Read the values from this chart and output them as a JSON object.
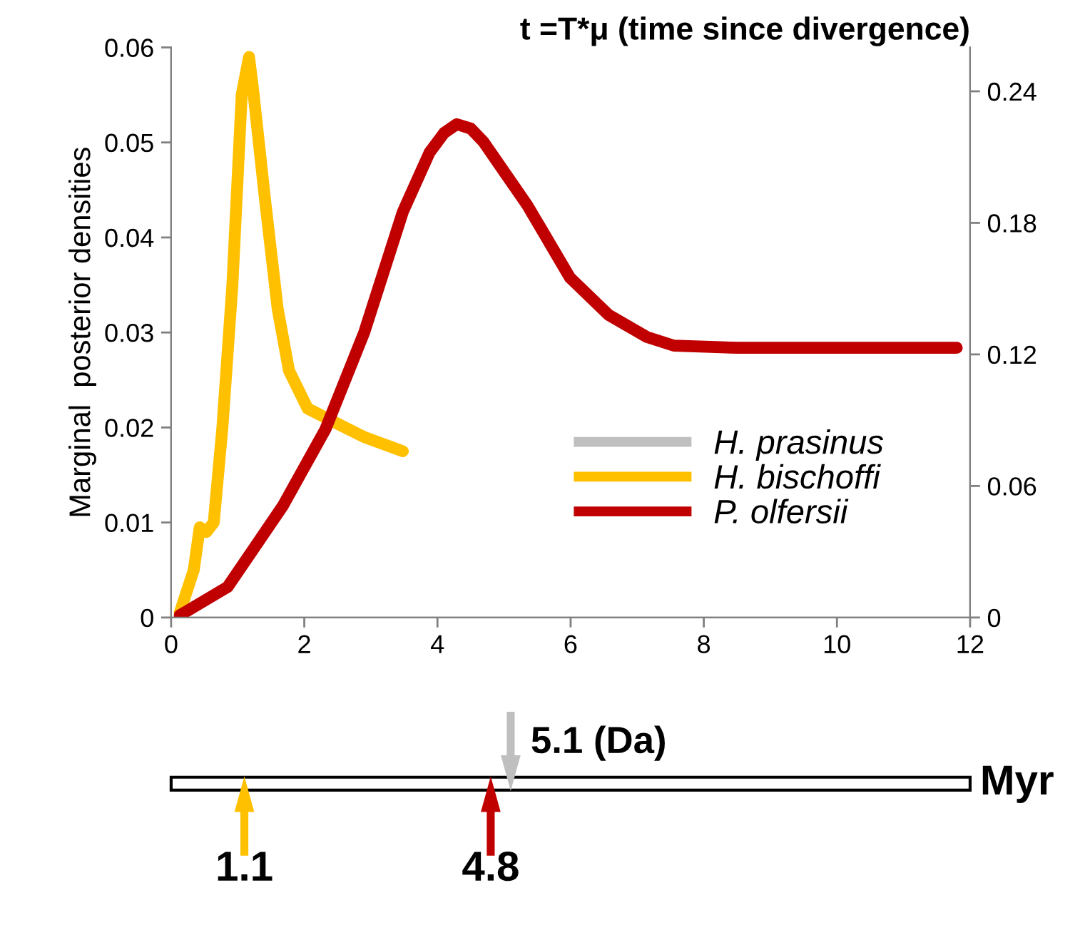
{
  "chart_data": [
    {
      "type": "line",
      "title": "t =T*μ (time since divergence)",
      "ylabel": "Marginal  posterior densities",
      "xlim": [
        0,
        12
      ],
      "xticks": [
        0,
        2,
        4,
        6,
        8,
        10,
        12
      ],
      "ylim": [
        0,
        0.06
      ],
      "yticks": [
        0,
        0.01,
        0.02,
        0.03,
        0.04,
        0.05,
        0.06
      ],
      "y2lim": [
        0,
        0.26
      ],
      "y2ticks": [
        0,
        0.06,
        0.12,
        0.18,
        0.24
      ],
      "grid": false,
      "legend": "lower right",
      "marker": "none",
      "line_style": "solid",
      "series": [
        {
          "name": "H. prasinus",
          "color": "#bfbfbf"
        },
        {
          "name": "H. bischoffi",
          "color": "#ffc000",
          "x": [
            0.13,
            0.34,
            0.43,
            0.53,
            0.64,
            0.77,
            0.92,
            1.06,
            1.17,
            1.24,
            1.41,
            1.6,
            1.77,
            2.05,
            2.47,
            2.9,
            3.48
          ],
          "values": [
            0.0005,
            0.005,
            0.0095,
            0.009,
            0.01,
            0.02,
            0.035,
            0.055,
            0.059,
            0.055,
            0.044,
            0.0325,
            0.026,
            0.022,
            0.0205,
            0.019,
            0.0175
          ]
        },
        {
          "name": "P. olfersii",
          "color": "#c00000",
          "axis": "y2",
          "x": [
            0.13,
            0.85,
            1.68,
            2.32,
            2.9,
            3.48,
            3.88,
            4.1,
            4.29,
            4.5,
            4.69,
            5.35,
            5.99,
            6.57,
            7.14,
            7.55,
            8.5,
            9.5,
            10.5,
            11.8
          ],
          "values": [
            0.001,
            0.014,
            0.051,
            0.086,
            0.13,
            0.185,
            0.212,
            0.221,
            0.225,
            0.223,
            0.217,
            0.188,
            0.155,
            0.138,
            0.128,
            0.124,
            0.123,
            0.123,
            0.123,
            0.123
          ]
        }
      ]
    },
    {
      "type": "other",
      "colors": [
        "#bfbfbf",
        "#ffc000",
        "#c00000"
      ],
      "value_labels": [
        "5.1 (Da)",
        "1.1",
        "4.8"
      ],
      "annotations": [
        "Myr"
      ]
    }
  ]
}
